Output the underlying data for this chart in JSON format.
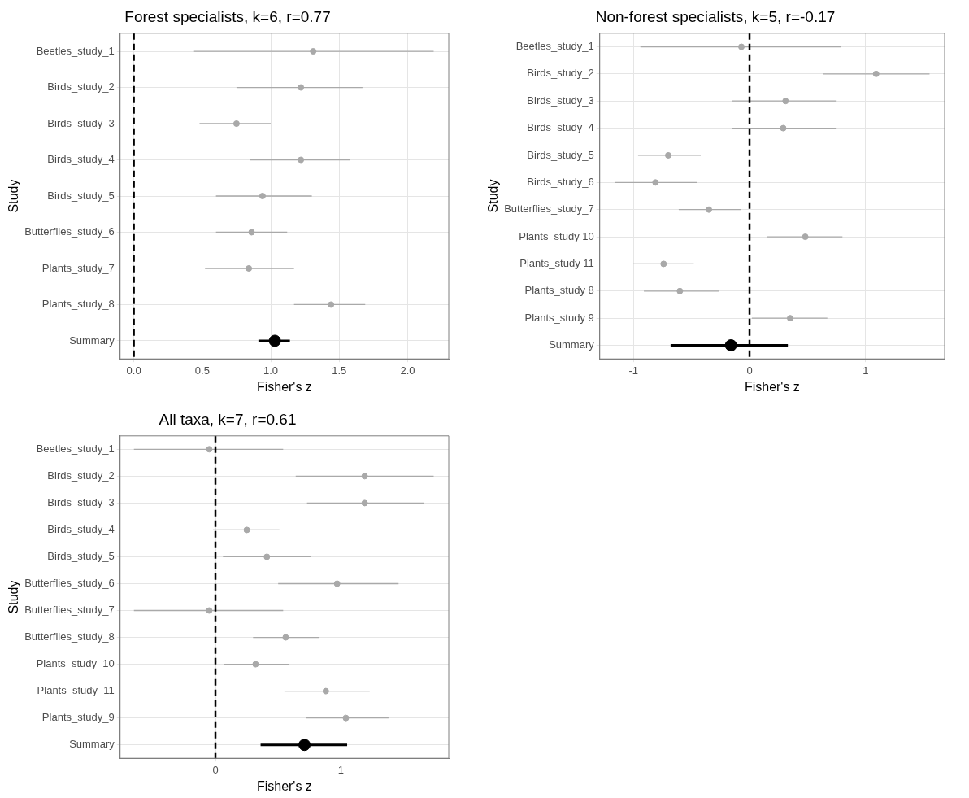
{
  "chart_data": [
    {
      "type": "scatter",
      "orientation": "horizontal",
      "title": "Forest specialists, k=6, r=0.77",
      "xlabel": "Fisher's z",
      "ylabel": "Study",
      "categories": [
        "Beetles_study_1",
        "Birds_study_2",
        "Birds_study_3",
        "Birds_study_4",
        "Birds_study_5",
        "Butterflies_study_6",
        "Plants_study_7",
        "Plants_study_8",
        "Summary"
      ],
      "series": [
        {
          "color": "#a9a9a9",
          "values": [
            1.31,
            1.22,
            0.75,
            1.22,
            0.94,
            0.86,
            0.84,
            1.44,
            null
          ],
          "errors": [
            [
              0.44,
              2.19
            ],
            [
              0.75,
              1.67
            ],
            [
              0.48,
              1.0
            ],
            [
              0.85,
              1.58
            ],
            [
              0.6,
              1.3
            ],
            [
              0.6,
              1.12
            ],
            [
              0.52,
              1.17
            ],
            [
              1.17,
              1.69
            ],
            null
          ]
        },
        {
          "color": "#000000",
          "values": [
            null,
            null,
            null,
            null,
            null,
            null,
            null,
            null,
            1.03
          ],
          "errors": [
            null,
            null,
            null,
            null,
            null,
            null,
            null,
            null,
            [
              0.91,
              1.14
            ]
          ]
        }
      ],
      "xlim": [
        -0.1,
        2.3
      ],
      "xticks": [
        {
          "value": 0,
          "label": "0.0"
        },
        {
          "value": 0.5,
          "label": "0.5"
        },
        {
          "value": 1,
          "label": "1.0"
        },
        {
          "value": 1.5,
          "label": "1.5"
        },
        {
          "value": 2,
          "label": "2.0"
        }
      ],
      "ref_lines": [
        {
          "axis": "x",
          "value": 0,
          "color": "#000000",
          "line_style": "dashed"
        }
      ],
      "grid": true,
      "marker": "circle",
      "legend": false
    },
    {
      "type": "scatter",
      "orientation": "horizontal",
      "title": "Non-forest specialists, k=5, r=-0.17",
      "xlabel": "Fisher's z",
      "ylabel": "Study",
      "categories": [
        "Beetles_study_1",
        "Birds_study_2",
        "Birds_study_3",
        "Birds_study_4",
        "Birds_study_5",
        "Birds_study_6",
        "Butterflies_study_7",
        "Plants_study 10",
        "Plants_study 11",
        "Plants_study 8",
        "Plants_study 9",
        "Summary"
      ],
      "series": [
        {
          "color": "#a9a9a9",
          "values": [
            -0.07,
            1.09,
            0.31,
            0.29,
            -0.7,
            -0.81,
            -0.35,
            0.48,
            -0.74,
            -0.6,
            0.35,
            null
          ],
          "errors": [
            [
              -0.94,
              0.79
            ],
            [
              0.63,
              1.55
            ],
            [
              -0.15,
              0.75
            ],
            [
              -0.15,
              0.75
            ],
            [
              -0.96,
              -0.42
            ],
            [
              -1.16,
              -0.45
            ],
            [
              -0.61,
              -0.07
            ],
            [
              0.15,
              0.8
            ],
            [
              -1.0,
              -0.48
            ],
            [
              -0.91,
              -0.26
            ],
            [
              0.02,
              0.67
            ],
            null
          ]
        },
        {
          "color": "#000000",
          "values": [
            null,
            null,
            null,
            null,
            null,
            null,
            null,
            null,
            null,
            null,
            null,
            -0.16
          ],
          "errors": [
            null,
            null,
            null,
            null,
            null,
            null,
            null,
            null,
            null,
            null,
            null,
            [
              -0.68,
              0.33
            ]
          ]
        }
      ],
      "xlim": [
        -1.29,
        1.68
      ],
      "xticks": [
        -1,
        0,
        1
      ],
      "ref_lines": [
        {
          "axis": "x",
          "value": 0,
          "color": "#000000",
          "line_style": "dashed"
        }
      ],
      "grid": true,
      "marker": "circle",
      "legend": false
    },
    {
      "type": "scatter",
      "orientation": "horizontal",
      "title": "All taxa, k=7, r=0.61",
      "xlabel": "Fisher's z",
      "ylabel": "Study",
      "categories": [
        "Beetles_study_1",
        "Birds_study_2",
        "Birds_study_3",
        "Birds_study_4",
        "Birds_study_5",
        "Butterflies_study_6",
        "Butterflies_study_7",
        "Butterflies_study_8",
        "Plants_study_10",
        "Plants_study_11",
        "Plants_study_9",
        "Summary"
      ],
      "series": [
        {
          "color": "#a9a9a9",
          "values": [
            -0.05,
            1.19,
            1.19,
            0.25,
            0.41,
            0.97,
            -0.05,
            0.56,
            0.32,
            0.88,
            1.04,
            null
          ],
          "errors": [
            [
              -0.65,
              0.54
            ],
            [
              0.64,
              1.74
            ],
            [
              0.73,
              1.66
            ],
            [
              -0.02,
              0.51
            ],
            [
              0.06,
              0.76
            ],
            [
              0.5,
              1.46
            ],
            [
              -0.65,
              0.54
            ],
            [
              0.3,
              0.83
            ],
            [
              0.07,
              0.59
            ],
            [
              0.55,
              1.23
            ],
            [
              0.72,
              1.38
            ],
            null
          ]
        },
        {
          "color": "#000000",
          "values": [
            null,
            null,
            null,
            null,
            null,
            null,
            null,
            null,
            null,
            null,
            null,
            0.71
          ],
          "errors": [
            null,
            null,
            null,
            null,
            null,
            null,
            null,
            null,
            null,
            null,
            null,
            [
              0.36,
              1.05
            ]
          ]
        }
      ],
      "xlim": [
        -0.76,
        1.86
      ],
      "xticks": [
        0,
        1
      ],
      "ref_lines": [
        {
          "axis": "x",
          "value": 0,
          "color": "#000000",
          "line_style": "dashed"
        }
      ],
      "grid": true,
      "marker": "circle",
      "legend": false
    }
  ]
}
